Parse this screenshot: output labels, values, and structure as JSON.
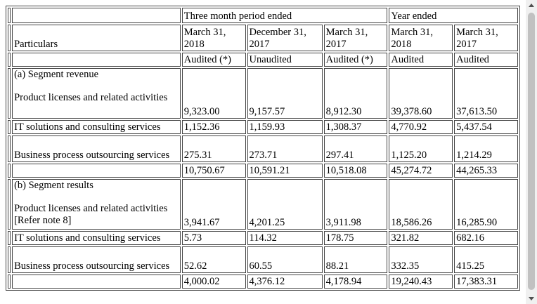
{
  "header": {
    "group_three_month": "Three month period ended",
    "group_year": "Year ended",
    "particulars": "Particulars",
    "columns": [
      {
        "line1": "March 31,",
        "line2": "2018",
        "status": "Audited (*)"
      },
      {
        "line1": "December 31,",
        "line2": "2017",
        "status": "Unaudited"
      },
      {
        "line1": "March 31,",
        "line2": "2017",
        "status": "Audited (*)"
      },
      {
        "line1": "March 31,",
        "line2": "2018",
        "status": "Audited"
      },
      {
        "line1": "March 31,",
        "line2": "2017",
        "status": "Audited"
      }
    ]
  },
  "segment_revenue": {
    "heading": "(a) Segment revenue",
    "rows": [
      {
        "label": "Product licenses and related activities",
        "values": [
          "9,323.00",
          "9,157.57",
          "8,912.30",
          "39,378.60",
          "37,613.50"
        ]
      },
      {
        "label": "IT solutions and consulting services",
        "values": [
          "1,152.36",
          "1,159.93",
          "1,308.37",
          "4,770.92",
          "5,437.54"
        ]
      },
      {
        "label": "Business process outsourcing services",
        "values": [
          "275.31",
          "273.71",
          "297.41",
          "1,125.20",
          "1,214.29"
        ]
      }
    ],
    "total": [
      "10,750.67",
      "10,591.21",
      "10,518.08",
      "45,274.72",
      "44,265.33"
    ]
  },
  "segment_results": {
    "heading": "(b) Segment results",
    "rows": [
      {
        "label": "Product licenses and related activities [Refer note 8]",
        "values": [
          "3,941.67",
          "4,201.25",
          "3,911.98",
          "18,586.26",
          "16,285.90"
        ]
      },
      {
        "label": "IT solutions and consulting services",
        "values": [
          "5.73",
          "114.32",
          "178.75",
          "321.82",
          "682.16"
        ]
      },
      {
        "label": "Business process outsourcing services",
        "values": [
          "52.62",
          "60.55",
          "88.21",
          "332.35",
          "415.25"
        ]
      }
    ],
    "total": [
      "4,000.02",
      "4,376.12",
      "4,178.94",
      "19,240.43",
      "17,383.31"
    ]
  }
}
